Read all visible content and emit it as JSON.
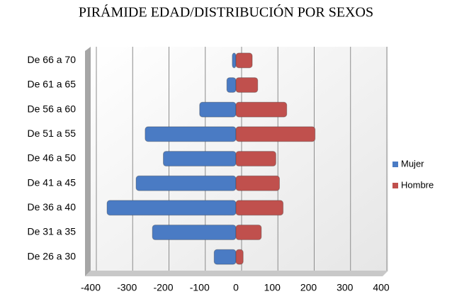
{
  "chart_data": {
    "type": "pyramid",
    "title": "PIRÁMIDE EDAD/DISTRIBUCIÓN POR SEXOS",
    "categories": [
      "De 66 a 70",
      "De 61 a 65",
      "De 56 a 60",
      "De 51 a 55",
      "De 46 a 50",
      "De 41 a 45",
      "De 36 a 40",
      "De 31 a 35",
      "De 26 a 30"
    ],
    "series": [
      {
        "name": "Mujer",
        "color": "#4a7bc4",
        "values": [
          -10,
          -25,
          -100,
          -250,
          -200,
          -275,
          -355,
          -230,
          -60
        ]
      },
      {
        "name": "Hombre",
        "color": "#c0504d",
        "values": [
          45,
          60,
          140,
          218,
          110,
          120,
          130,
          70,
          20
        ]
      }
    ],
    "xlim": [
      -400,
      400
    ],
    "xticks": [
      -400,
      -300,
      -200,
      -100,
      0,
      100,
      200,
      300,
      400
    ],
    "grid": true,
    "legend": "right"
  }
}
